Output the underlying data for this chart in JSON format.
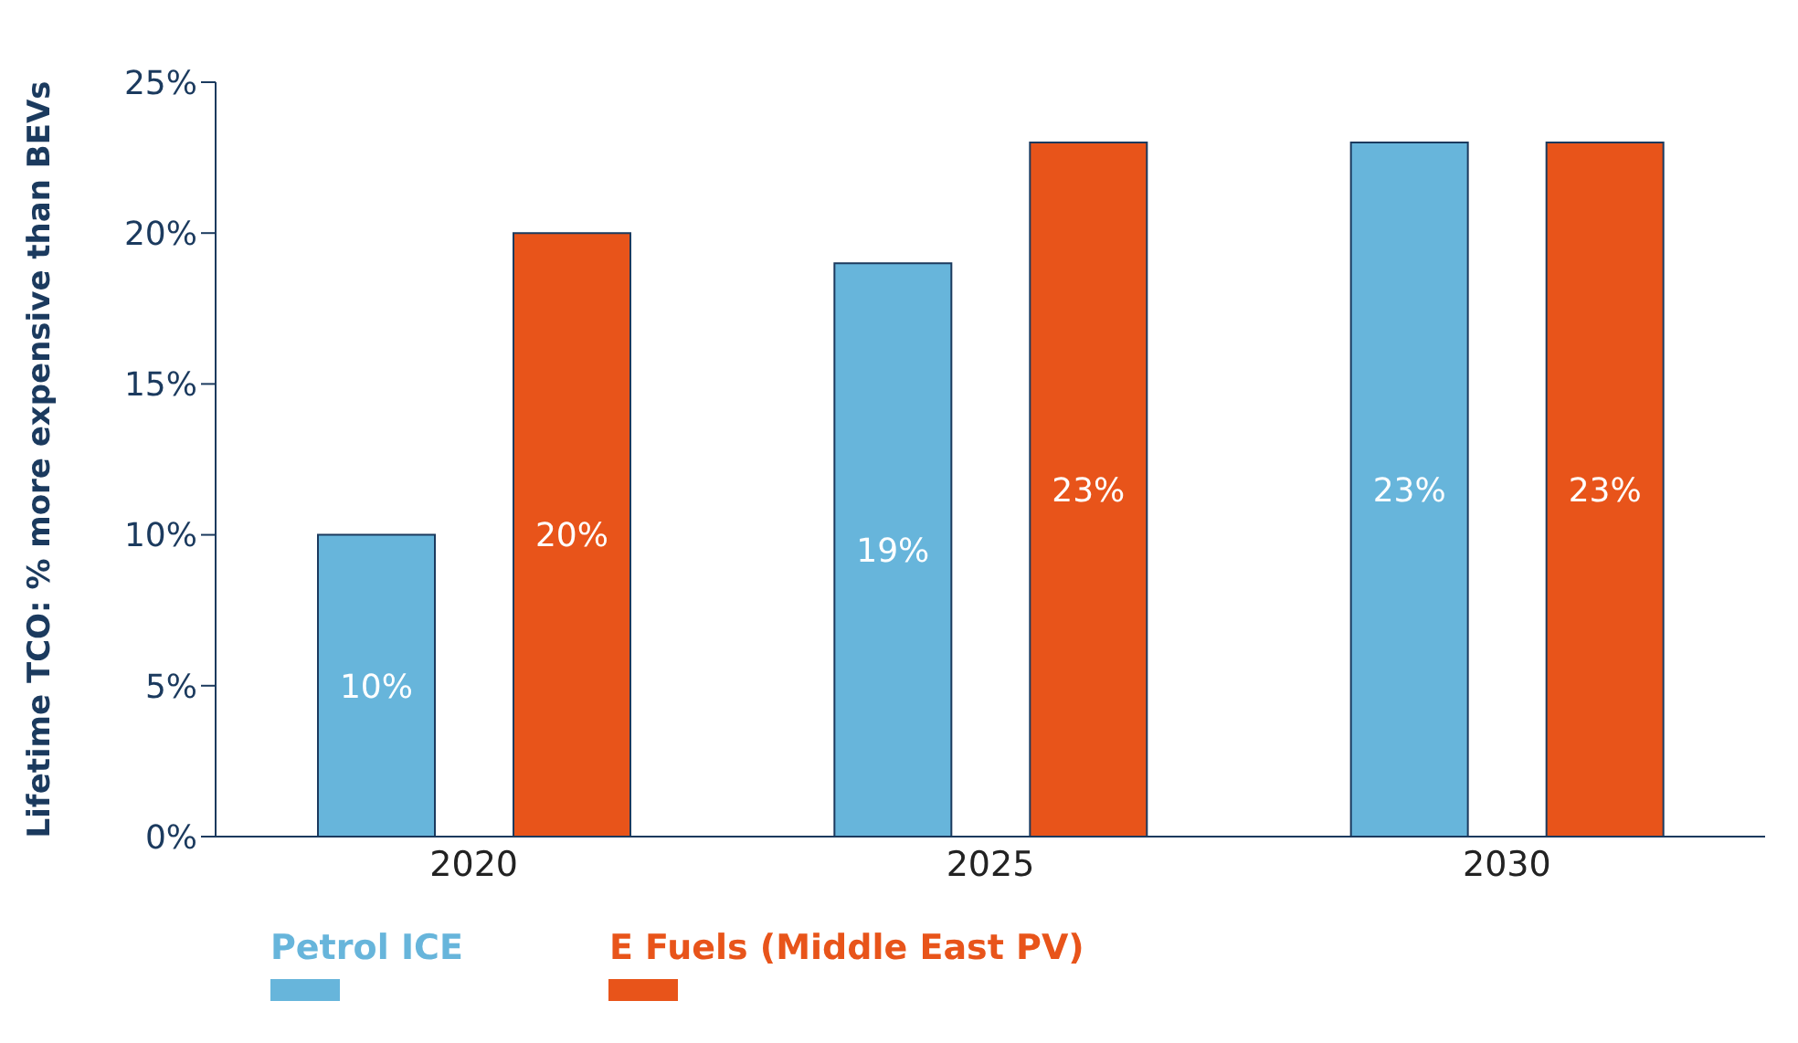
{
  "chart_data": {
    "type": "bar",
    "ylabel": "Lifetime TCO: % more expensive than BEVs",
    "categories": [
      "2020",
      "2025",
      "2030"
    ],
    "series": [
      {
        "name": "Petrol ICE",
        "color": "#67b5db",
        "values": [
          10,
          19,
          23
        ]
      },
      {
        "name": "E Fuels (Middle East PV)",
        "color": "#e8541a",
        "values": [
          20,
          23,
          23
        ]
      }
    ],
    "ylim": [
      0,
      25
    ],
    "yticks": [
      {
        "value": 0,
        "label": "0%"
      },
      {
        "value": 5,
        "label": "5%"
      },
      {
        "value": 10,
        "label": "10%"
      },
      {
        "value": 15,
        "label": "15%"
      },
      {
        "value": 20,
        "label": "20%"
      },
      {
        "value": 25,
        "label": "25%"
      }
    ],
    "value_labels": [
      [
        "10%",
        "19%",
        "23%"
      ],
      [
        "20%",
        "23%",
        "23%"
      ]
    ],
    "grid": false,
    "legend": "bottom left"
  }
}
